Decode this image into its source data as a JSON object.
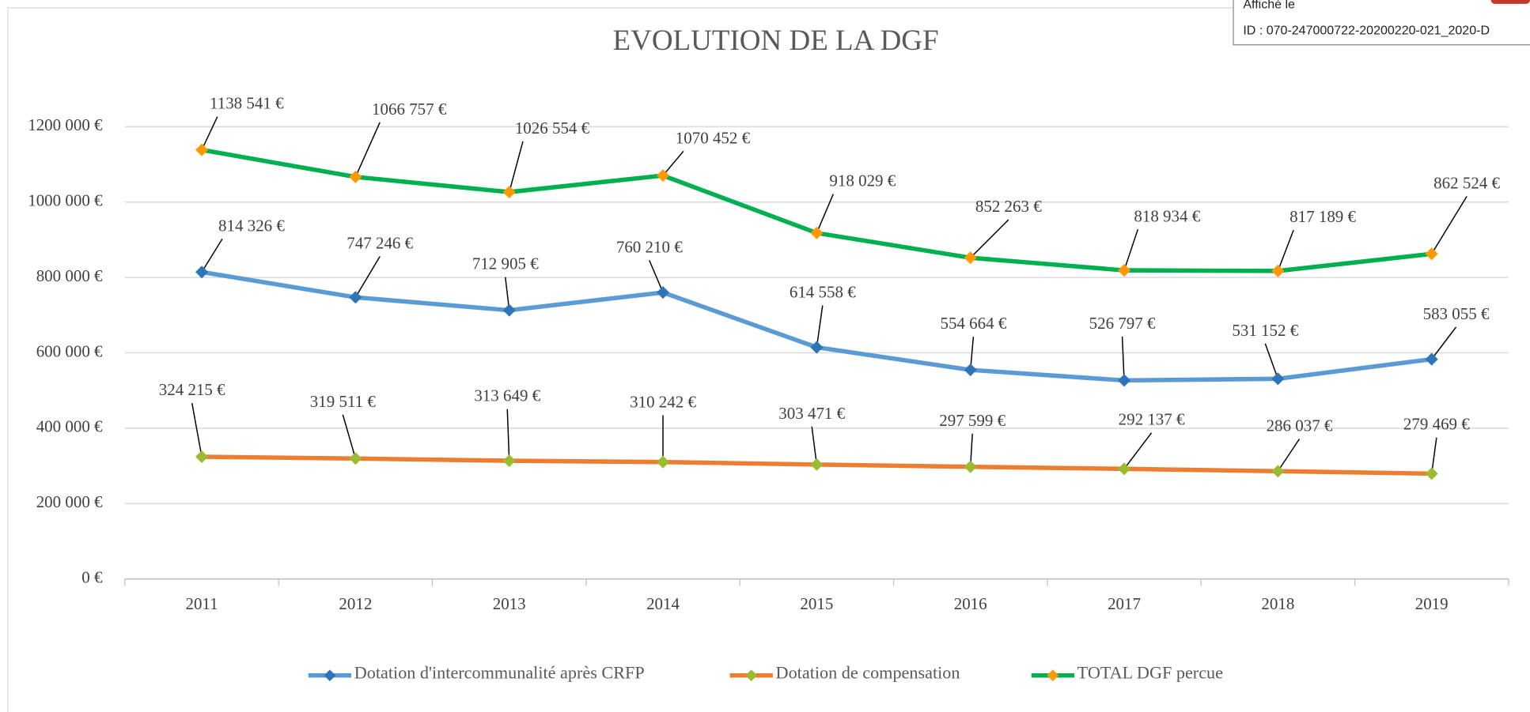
{
  "stamp": {
    "line1": "Affiché le",
    "line2": "ID : 070-247000722-20200220-021_2020-D"
  },
  "chart_data": {
    "type": "line",
    "title": "EVOLUTION DE LA DGF",
    "categories": [
      "2011",
      "2012",
      "2013",
      "2014",
      "2015",
      "2016",
      "2017",
      "2018",
      "2019"
    ],
    "ylim": [
      0,
      1200000
    ],
    "yticks": [
      {
        "value": 0,
        "label": "0 €"
      },
      {
        "value": 200000,
        "label": "200 000 €"
      },
      {
        "value": 400000,
        "label": "400 000 €"
      },
      {
        "value": 600000,
        "label": "600 000 €"
      },
      {
        "value": 800000,
        "label": "800 000 €"
      },
      {
        "value": 1000000,
        "label": "1000 000 €"
      },
      {
        "value": 1200000,
        "label": "1200 000 €"
      }
    ],
    "grid": true,
    "legend": "bottom",
    "series": [
      {
        "name": "Dotation d'intercommunalité après CRFP",
        "color": "#5b9bd5",
        "marker_color": "#2e75b6",
        "values": [
          814326,
          747246,
          712905,
          760210,
          614558,
          554664,
          526797,
          531152,
          583055
        ],
        "value_labels": [
          "814 326 €",
          "747 246 €",
          "712 905 €",
          "760 210 €",
          "614 558 €",
          "554 664 €",
          "526 797 €",
          "531 152 €",
          "583 055 €"
        ]
      },
      {
        "name": "Dotation de compensation",
        "color": "#ed7d31",
        "marker_color": "#9bbb30",
        "values": [
          324215,
          319511,
          313649,
          310242,
          303471,
          297599,
          292137,
          286037,
          279469
        ],
        "value_labels": [
          "324 215 €",
          "319 511 €",
          "313 649 €",
          "310 242 €",
          "303 471 €",
          "297 599 €",
          "292 137 €",
          "286 037 €",
          "279 469 €"
        ]
      },
      {
        "name": "TOTAL DGF percue",
        "color": "#00b050",
        "marker_color": "#ff9900",
        "values": [
          1138541,
          1066757,
          1026554,
          1070452,
          918029,
          852263,
          818934,
          817189,
          862524
        ],
        "value_labels": [
          "1138 541 €",
          "1066 757 €",
          "1026 554 €",
          "1070 452 €",
          "918 029 €",
          "852 263 €",
          "818 934 €",
          "817 189 €",
          "862 524 €"
        ]
      }
    ]
  }
}
